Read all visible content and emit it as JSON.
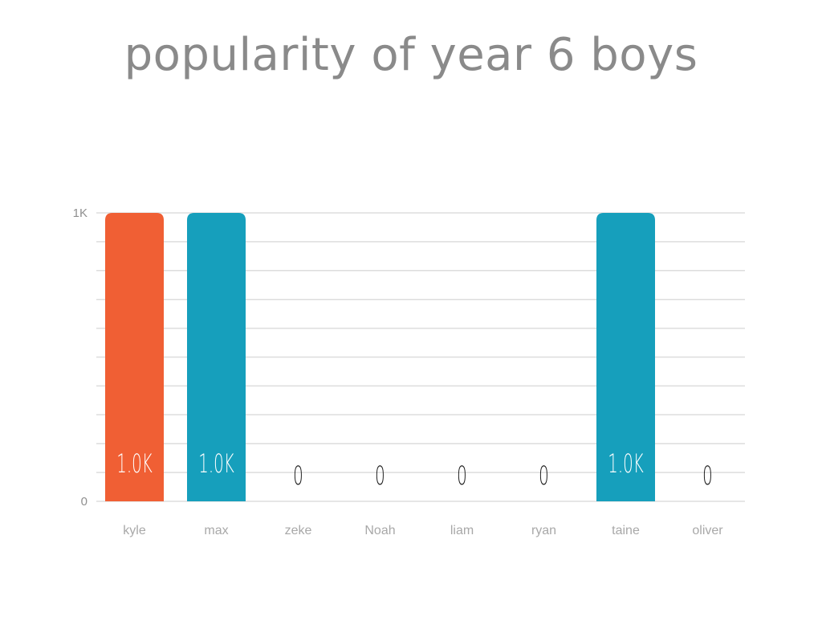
{
  "chart_data": {
    "type": "bar",
    "title": "popularity of year 6 boys",
    "categories": [
      "kyle",
      "max",
      "zeke",
      "Noah",
      "liam",
      "ryan",
      "taine",
      "oliver"
    ],
    "values": [
      1000,
      1000,
      0,
      0,
      0,
      0,
      1000,
      0
    ],
    "data_labels": [
      "1.0K",
      "1.0K",
      "0",
      "0",
      "0",
      "0",
      "1.0K",
      "0"
    ],
    "bar_colors": [
      "#F05F34",
      "#169FBC",
      "#169FBC",
      "#169FBC",
      "#169FBC",
      "#169FBC",
      "#169FBC",
      "#169FBC"
    ],
    "ylim": [
      0,
      1000
    ],
    "yticks": [
      {
        "value": 0,
        "label": "0"
      },
      {
        "value": 1000,
        "label": "1K"
      }
    ],
    "gridline_step": 100,
    "grid": true,
    "xlabel": "",
    "ylabel": ""
  }
}
